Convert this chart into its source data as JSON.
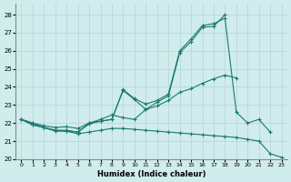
{
  "xlabel": "Humidex (Indice chaleur)",
  "xlim": [
    -0.5,
    23.5
  ],
  "ylim": [
    20,
    28.6
  ],
  "yticks": [
    20,
    21,
    22,
    23,
    24,
    25,
    26,
    27,
    28
  ],
  "xticks": [
    0,
    1,
    2,
    3,
    4,
    5,
    6,
    7,
    8,
    9,
    10,
    11,
    12,
    13,
    14,
    15,
    16,
    17,
    18,
    19,
    20,
    21,
    22,
    23
  ],
  "bg_color": "#d0ecec",
  "grid_color": "#b8d8d8",
  "line_color": "#1a7a6e",
  "lines": [
    {
      "x": [
        0,
        1,
        2,
        3,
        4,
        5,
        6,
        7,
        8,
        9,
        10,
        11,
        12,
        13,
        14,
        15,
        16,
        17,
        18
      ],
      "y": [
        22.2,
        21.9,
        21.75,
        21.6,
        21.55,
        21.5,
        21.95,
        22.1,
        22.2,
        23.8,
        23.3,
        22.75,
        23.15,
        23.5,
        25.9,
        26.5,
        27.3,
        27.35,
        28.0
      ]
    },
    {
      "x": [
        0,
        1,
        2,
        3,
        4,
        5,
        6,
        7,
        8,
        9,
        10,
        11,
        12,
        13,
        14,
        15,
        16,
        17,
        18,
        19
      ],
      "y": [
        22.2,
        22.0,
        21.85,
        21.75,
        21.8,
        21.7,
        22.0,
        22.2,
        22.45,
        22.3,
        22.2,
        22.75,
        22.95,
        23.25,
        23.7,
        23.9,
        24.2,
        24.45,
        24.65,
        24.5
      ]
    },
    {
      "x": [
        0,
        1,
        2,
        3,
        4,
        5,
        6,
        7,
        8,
        9,
        10,
        11,
        12,
        13,
        14,
        15,
        16,
        17,
        18,
        19,
        20,
        21,
        22
      ],
      "y": [
        22.2,
        21.9,
        21.75,
        21.6,
        21.6,
        21.5,
        22.0,
        22.1,
        22.2,
        23.85,
        23.35,
        23.05,
        23.25,
        23.6,
        26.0,
        26.65,
        27.4,
        27.5,
        27.8,
        22.6,
        22.0,
        22.2,
        21.5
      ]
    },
    {
      "x": [
        0,
        1,
        2,
        3,
        4,
        5,
        6,
        7,
        8,
        9,
        10,
        11,
        12,
        13,
        14,
        15,
        16,
        17,
        18,
        19,
        20,
        21,
        22,
        23
      ],
      "y": [
        22.2,
        22.0,
        21.75,
        21.55,
        21.55,
        21.4,
        21.5,
        21.6,
        21.7,
        21.7,
        21.65,
        21.6,
        21.55,
        21.5,
        21.45,
        21.4,
        21.35,
        21.3,
        21.25,
        21.2,
        21.1,
        21.0,
        20.3,
        20.1
      ]
    }
  ]
}
